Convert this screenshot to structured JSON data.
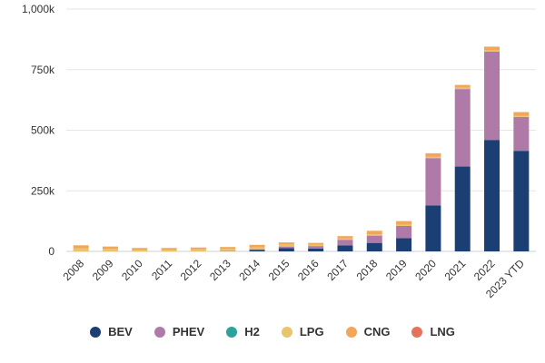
{
  "chart_data": {
    "type": "bar",
    "stacked": true,
    "categories": [
      "2008",
      "2009",
      "2010",
      "2011",
      "2012",
      "2013",
      "2014",
      "2015",
      "2016",
      "2017",
      "2018",
      "2019",
      "2020",
      "2021",
      "2022",
      "2023 YTD"
    ],
    "series": [
      {
        "name": "BEV",
        "color": "#1b3f73",
        "values": [
          0,
          0,
          0,
          0,
          0,
          1000,
          6000,
          13000,
          12000,
          25000,
          35000,
          55000,
          190000,
          350000,
          460000,
          415000
        ]
      },
      {
        "name": "PHEV",
        "color": "#b07aa8",
        "values": [
          0,
          0,
          0,
          0,
          0,
          0,
          3000,
          7000,
          10000,
          23000,
          30000,
          50000,
          195000,
          320000,
          365000,
          140000
        ]
      },
      {
        "name": "H2",
        "color": "#2ba398",
        "values": [
          0,
          0,
          0,
          0,
          0,
          0,
          0,
          0,
          0,
          0,
          0,
          0,
          0,
          0,
          0,
          0
        ]
      },
      {
        "name": "LPG",
        "color": "#e8c46a",
        "values": [
          12000,
          10000,
          6000,
          6000,
          8000,
          9000,
          8000,
          7000,
          5000,
          5000,
          5000,
          5000,
          5000,
          5000,
          5000,
          5000
        ]
      },
      {
        "name": "CNG",
        "color": "#f2a65a",
        "values": [
          13000,
          10000,
          8000,
          8000,
          8000,
          8000,
          10000,
          10000,
          8000,
          10000,
          15000,
          15000,
          15000,
          12000,
          15000,
          15000
        ]
      },
      {
        "name": "LNG",
        "color": "#e4735a",
        "values": [
          0,
          0,
          0,
          0,
          0,
          0,
          0,
          0,
          0,
          0,
          0,
          0,
          0,
          0,
          0,
          0
        ]
      }
    ],
    "y_ticks": [
      "0",
      "250k",
      "500k",
      "750k",
      "1,000k"
    ],
    "y_tick_values": [
      0,
      250000,
      500000,
      750000,
      1000000
    ],
    "ylim": [
      0,
      1000000
    ],
    "grid": true,
    "legend_position": "bottom"
  }
}
